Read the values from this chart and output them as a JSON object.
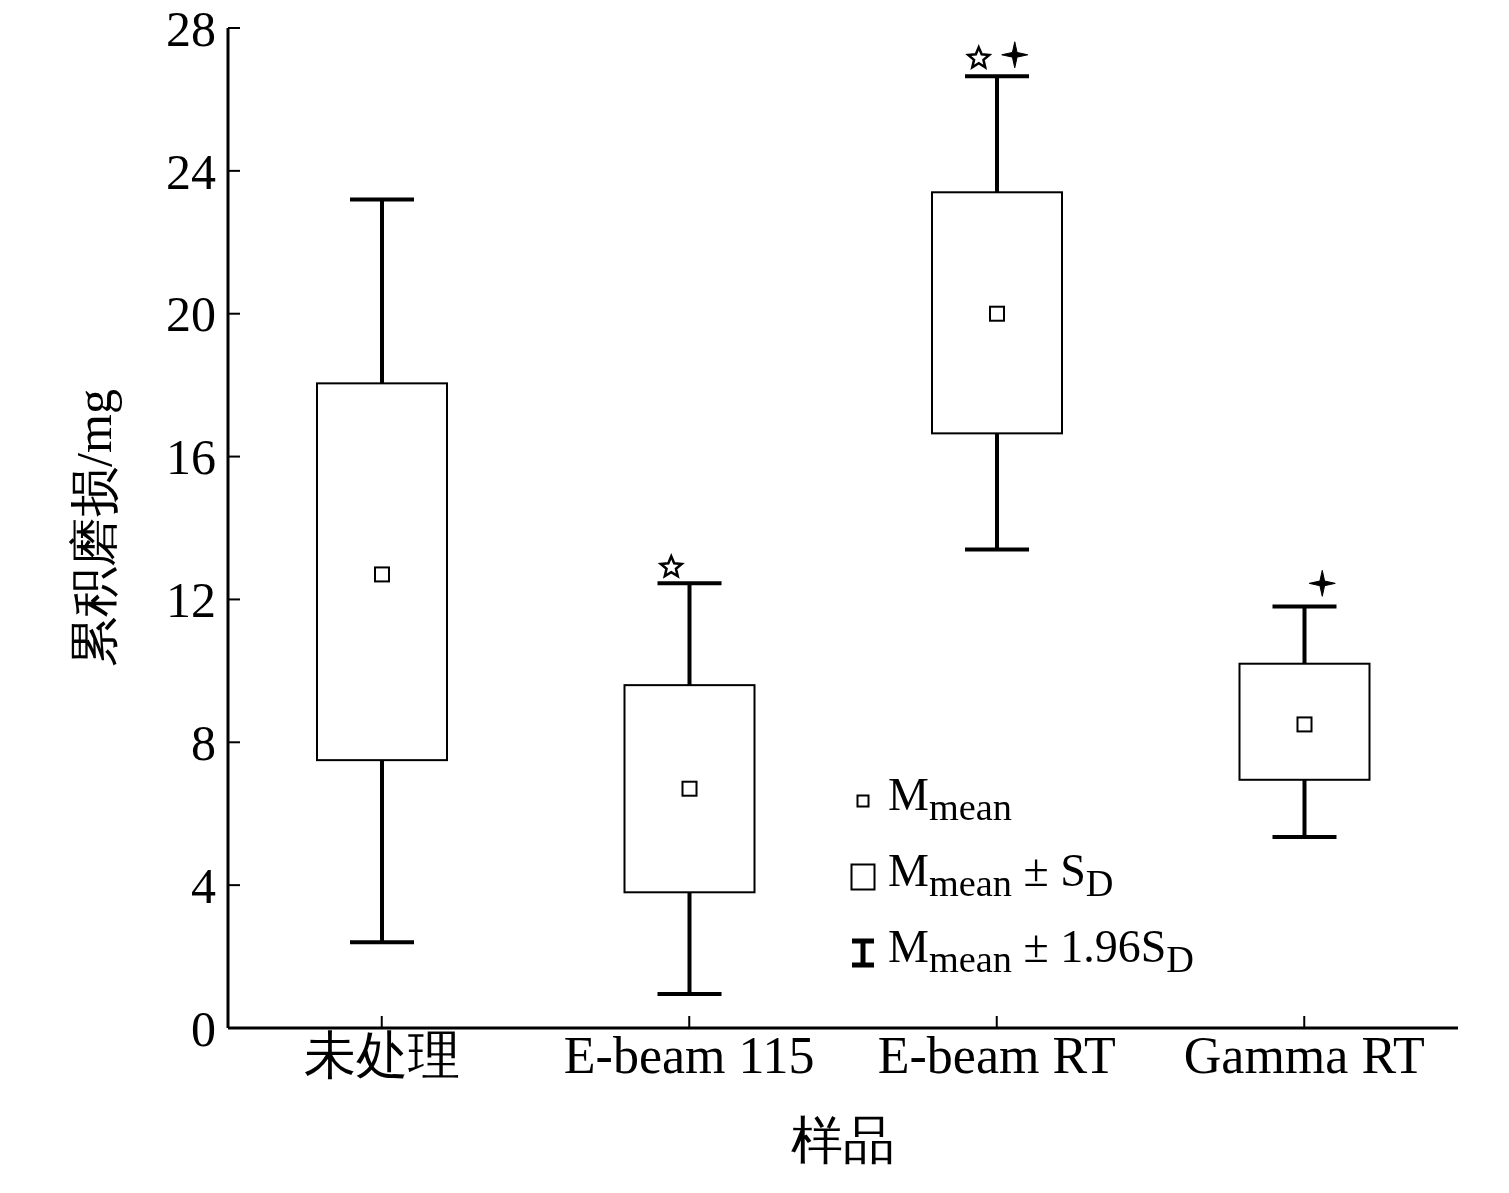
{
  "chart_data": {
    "type": "box",
    "xlabel": "样品",
    "ylabel": "累积磨损/mg",
    "categories": [
      "未处理",
      "E-beam 115",
      "E-beam RT",
      "Gamma RT"
    ],
    "boxes": [
      {
        "low": 2.4,
        "q1": 7.5,
        "q3": 18.05,
        "high": 23.2,
        "mean": 12.7
      },
      {
        "low": 0.95,
        "q1": 3.8,
        "q3": 9.6,
        "high": 12.45,
        "mean": 6.7
      },
      {
        "low": 13.4,
        "q1": 16.65,
        "q3": 23.4,
        "high": 26.65,
        "mean": 20.0
      },
      {
        "low": 5.35,
        "q1": 6.95,
        "q3": 10.2,
        "high": 11.8,
        "mean": 8.5
      }
    ],
    "series": [
      {
        "type": "scatter",
        "marker": "star",
        "color": "#000000",
        "values": [
          null,
          12.9,
          27.15,
          null
        ]
      },
      {
        "type": "scatter",
        "marker": "cross",
        "color": "#000000",
        "values": [
          null,
          null,
          27.25,
          12.45
        ]
      }
    ],
    "ylim": [
      0,
      28
    ],
    "yticks": [
      0,
      4,
      8,
      12,
      16,
      20,
      24,
      28
    ],
    "grid": false,
    "annotations": [
      "M$_{mean}$",
      "M$_{mean}$ ± S$_{D}$",
      "M$_{mean}$ ± 1.96S$_{D}$"
    ]
  }
}
